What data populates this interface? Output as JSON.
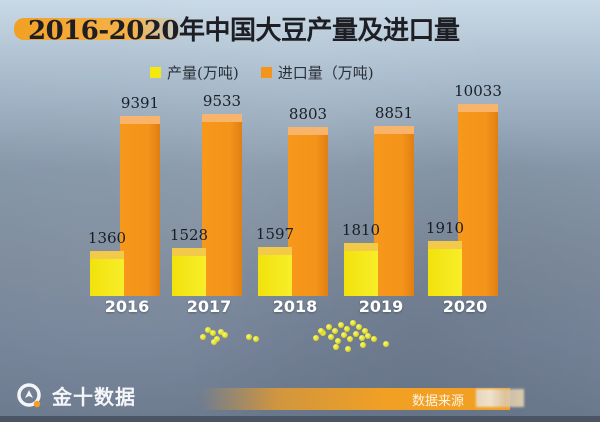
{
  "title": "2016-2020年中国大豆产量及进口量",
  "legend": [
    {
      "label": "产量(万吨)",
      "color": "#f4e80f"
    },
    {
      "label": "进口量（万吨)",
      "color": "#f4941a"
    }
  ],
  "source_label": "数据来源",
  "logo": {
    "name": "金十数据"
  },
  "colors": {
    "production": "#f4e80f",
    "import": "#f4941a",
    "title_highlight": "#f2a024"
  },
  "chart_data": {
    "type": "bar",
    "title": "2016-2020年中国大豆产量及进口量",
    "xlabel": "",
    "ylabel": "万吨",
    "categories": [
      "2016",
      "2017",
      "2018",
      "2019",
      "2020"
    ],
    "series": [
      {
        "name": "产量(万吨)",
        "values": [
          1360,
          1528,
          1597,
          1810,
          1910
        ]
      },
      {
        "name": "进口量（万吨)",
        "values": [
          9391,
          9533,
          8803,
          8851,
          10033
        ]
      }
    ],
    "grid": false,
    "legend_position": "top",
    "style": "3d-bars",
    "data_labels": true
  }
}
